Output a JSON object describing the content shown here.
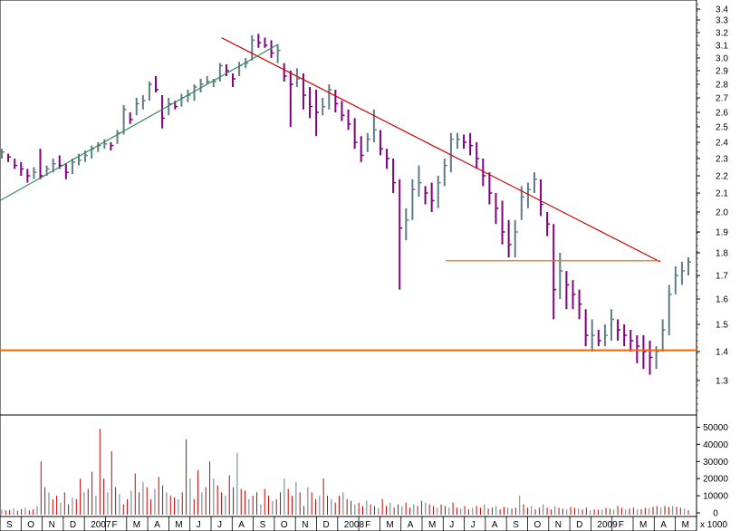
{
  "chart_data": [
    {
      "type": "ohlc",
      "panel": "price",
      "ylim": [
        1.2,
        3.45
      ],
      "y_ticks": [
        "3.4",
        "3.3",
        "3.2",
        "3.1",
        "3.0",
        "2.9",
        "2.8",
        "2.7",
        "2.6",
        "2.5",
        "2.4",
        "2.3",
        "2.2",
        "2.1",
        "2.0",
        "1.9",
        "1.8",
        "1.7",
        "1.6",
        "1.5",
        "1.4",
        "1.3"
      ],
      "series": [
        {
          "style": "ohlc-bars",
          "up_color": "#607d86",
          "down_color": "#800080",
          "points": [
            [
              2.36,
              2.3,
              2.34
            ],
            [
              2.33,
              2.28,
              2.31
            ],
            [
              2.3,
              2.24,
              2.26
            ],
            [
              2.28,
              2.2,
              2.24
            ],
            [
              2.24,
              2.16,
              2.2
            ],
            [
              2.25,
              2.18,
              2.22
            ],
            [
              2.36,
              2.18,
              2.2
            ],
            [
              2.26,
              2.2,
              2.24
            ],
            [
              2.3,
              2.22,
              2.27
            ],
            [
              2.32,
              2.24,
              2.26
            ],
            [
              2.27,
              2.18,
              2.22
            ],
            [
              2.3,
              2.21,
              2.28
            ],
            [
              2.33,
              2.26,
              2.29
            ],
            [
              2.35,
              2.28,
              2.32
            ],
            [
              2.38,
              2.3,
              2.36
            ],
            [
              2.4,
              2.34,
              2.38
            ],
            [
              2.42,
              2.36,
              2.39
            ],
            [
              2.4,
              2.35,
              2.38
            ],
            [
              2.48,
              2.39,
              2.46
            ],
            [
              2.65,
              2.45,
              2.62
            ],
            [
              2.6,
              2.52,
              2.55
            ],
            [
              2.7,
              2.58,
              2.66
            ],
            [
              2.72,
              2.62,
              2.68
            ],
            [
              2.82,
              2.68,
              2.8
            ],
            [
              2.86,
              2.74,
              2.76
            ],
            [
              2.72,
              2.49,
              2.56
            ],
            [
              2.7,
              2.58,
              2.66
            ],
            [
              2.68,
              2.62,
              2.64
            ],
            [
              2.73,
              2.64,
              2.7
            ],
            [
              2.76,
              2.67,
              2.72
            ],
            [
              2.8,
              2.68,
              2.78
            ],
            [
              2.84,
              2.74,
              2.8
            ],
            [
              2.86,
              2.8,
              2.82
            ],
            [
              2.84,
              2.78,
              2.82
            ],
            [
              2.96,
              2.82,
              2.94
            ],
            [
              2.95,
              2.86,
              2.9
            ],
            [
              2.88,
              2.78,
              2.84
            ],
            [
              2.97,
              2.86,
              2.94
            ],
            [
              3.0,
              2.92,
              2.96
            ],
            [
              3.18,
              2.98,
              3.14
            ],
            [
              3.19,
              3.08,
              3.12
            ],
            [
              3.16,
              3.08,
              3.1
            ],
            [
              3.14,
              3.0,
              3.04
            ],
            [
              3.1,
              2.96,
              3.06
            ],
            [
              2.96,
              2.82,
              2.86
            ],
            [
              2.9,
              2.5,
              2.8
            ],
            [
              2.92,
              2.78,
              2.84
            ],
            [
              2.88,
              2.62,
              2.72
            ],
            [
              2.78,
              2.56,
              2.64
            ],
            [
              2.76,
              2.44,
              2.6
            ],
            [
              2.7,
              2.58,
              2.64
            ],
            [
              2.8,
              2.62,
              2.76
            ],
            [
              2.76,
              2.6,
              2.66
            ],
            [
              2.68,
              2.54,
              2.58
            ],
            [
              2.62,
              2.48,
              2.52
            ],
            [
              2.56,
              2.36,
              2.4
            ],
            [
              2.44,
              2.28,
              2.32
            ],
            [
              2.46,
              2.34,
              2.42
            ],
            [
              2.62,
              2.4,
              2.48
            ],
            [
              2.48,
              2.32,
              2.36
            ],
            [
              2.36,
              2.24,
              2.3
            ],
            [
              2.3,
              2.1,
              2.16
            ],
            [
              2.18,
              1.64,
              1.92
            ],
            [
              2.02,
              1.86,
              1.96
            ],
            [
              2.18,
              1.96,
              2.12
            ],
            [
              2.26,
              2.08,
              2.16
            ],
            [
              2.14,
              2.04,
              2.1
            ],
            [
              2.16,
              2.0,
              2.06
            ],
            [
              2.2,
              2.02,
              2.16
            ],
            [
              2.3,
              2.14,
              2.26
            ],
            [
              2.46,
              2.22,
              2.42
            ],
            [
              2.46,
              2.36,
              2.42
            ],
            [
              2.45,
              2.36,
              2.4
            ],
            [
              2.46,
              2.32,
              2.38
            ],
            [
              2.4,
              2.24,
              2.3
            ],
            [
              2.3,
              2.14,
              2.2
            ],
            [
              2.22,
              2.04,
              2.1
            ],
            [
              2.1,
              1.94,
              2.02
            ],
            [
              2.06,
              1.84,
              1.9
            ],
            [
              1.96,
              1.78,
              1.84
            ],
            [
              1.96,
              1.78,
              1.9
            ],
            [
              2.14,
              1.96,
              2.08
            ],
            [
              2.16,
              2.02,
              2.12
            ],
            [
              2.22,
              2.1,
              2.18
            ],
            [
              2.18,
              1.98,
              2.04
            ],
            [
              2.0,
              1.88,
              1.94
            ],
            [
              1.94,
              1.52,
              1.64
            ],
            [
              1.8,
              1.6,
              1.72
            ],
            [
              1.72,
              1.56,
              1.66
            ],
            [
              1.68,
              1.56,
              1.62
            ],
            [
              1.64,
              1.52,
              1.58
            ],
            [
              1.56,
              1.42,
              1.46
            ],
            [
              1.52,
              1.4,
              1.46
            ],
            [
              1.48,
              1.42,
              1.44
            ],
            [
              1.5,
              1.42,
              1.46
            ],
            [
              1.56,
              1.44,
              1.52
            ],
            [
              1.52,
              1.44,
              1.48
            ],
            [
              1.5,
              1.42,
              1.46
            ],
            [
              1.48,
              1.4,
              1.44
            ],
            [
              1.46,
              1.36,
              1.42
            ],
            [
              1.46,
              1.34,
              1.4
            ],
            [
              1.44,
              1.32,
              1.38
            ],
            [
              1.42,
              1.34,
              1.4
            ],
            [
              1.52,
              1.4,
              1.48
            ],
            [
              1.66,
              1.46,
              1.62
            ],
            [
              1.74,
              1.62,
              1.7
            ],
            [
              1.76,
              1.66,
              1.72
            ],
            [
              1.78,
              1.7,
              1.76
            ]
          ]
        },
        {
          "style": "line",
          "color": "#cc0000",
          "x": [
            0.318,
            0.948
          ],
          "y": [
            3.16,
            1.76
          ]
        },
        {
          "style": "line",
          "color": "#2e8b57",
          "x": [
            0.0,
            0.4
          ],
          "y": [
            2.06,
            3.11
          ]
        },
        {
          "style": "line",
          "color": "#ff6600",
          "x": [
            0.64,
            0.948
          ],
          "y": [
            1.765,
            1.765
          ]
        },
        {
          "style": "line",
          "color": "#ff6600",
          "x": [
            0.0,
            1.0
          ],
          "y": [
            1.405,
            1.405
          ]
        }
      ]
    },
    {
      "type": "bar",
      "panel": "volume",
      "ylim": [
        0,
        55000
      ],
      "y_ticks": [
        "50000",
        "40000",
        "30000",
        "20000",
        "10000",
        "0"
      ],
      "y_unit": "x 1000",
      "values": [
        2000,
        1500,
        1800,
        2500,
        1200,
        2200,
        3000,
        1500,
        2000,
        4000,
        30000,
        15000,
        12000,
        8000,
        10000,
        6000,
        12000,
        5000,
        9000,
        8000,
        20000,
        12000,
        14000,
        24000,
        10000,
        49000,
        20000,
        12000,
        36000,
        15000,
        11000,
        5000,
        8000,
        13000,
        23000,
        12000,
        18000,
        15000,
        8000,
        14000,
        21000,
        16000,
        12000,
        10000,
        9000,
        8000,
        12000,
        43000,
        20000,
        8000,
        25000,
        12000,
        15000,
        30000,
        20000,
        16000,
        12000,
        10000,
        22000,
        15000,
        35000,
        14000,
        13000,
        8000,
        10000,
        12000,
        5000,
        14000,
        10000,
        7000,
        8000,
        12000,
        20000,
        14000,
        10000,
        18000,
        12000,
        4000,
        15000,
        12000,
        8000,
        10000,
        20000,
        10000,
        8000,
        6000,
        10000,
        12000,
        8000,
        7000,
        5000,
        6000,
        4000,
        7000,
        5000,
        4000,
        3000,
        8000,
        4000,
        6000,
        3000,
        5000,
        4000,
        6000,
        3000,
        5000,
        4000,
        7000,
        6000,
        5000,
        4000,
        3000,
        5000,
        4000,
        3000,
        6000,
        3000,
        2500,
        4000,
        2000,
        3000,
        4000,
        3000,
        5000,
        2500,
        3000,
        4000,
        2000,
        3500,
        3000,
        2500,
        3000,
        10000,
        5000,
        3000,
        4000,
        2000,
        3000,
        5000,
        3000,
        2000,
        4000,
        3000,
        2500,
        2000,
        3500,
        3000,
        2500,
        2000,
        3000,
        1500,
        2000,
        1800,
        2000,
        3000,
        2500,
        2000,
        4000,
        3000,
        2000,
        2500,
        3000,
        2000,
        2200,
        3000,
        2800,
        3500,
        4000,
        3000,
        4000,
        3500,
        4000,
        3500,
        3000,
        2500,
        1500
      ],
      "colors_by_bar": "mixed",
      "up_color": "#607d86",
      "down_color": "#cc0000"
    }
  ],
  "x_axis": {
    "labels": [
      "S",
      "O",
      "N",
      "D",
      "2007",
      "F",
      "M",
      "A",
      "M",
      "J",
      "J",
      "A",
      "S",
      "O",
      "N",
      "D",
      "2008",
      "F",
      "M",
      "A",
      "M",
      "J",
      "J",
      "A",
      "S",
      "O",
      "N",
      "D",
      "2009",
      "F",
      "M",
      "A",
      "M"
    ],
    "label_x_frac": [
      0.004,
      0.045,
      0.075,
      0.104,
      0.141,
      0.182,
      0.216,
      0.247,
      0.282,
      0.313,
      0.348,
      0.381,
      0.416,
      0.45,
      0.483,
      0.513,
      0.552,
      0.586,
      0.623,
      0.656,
      0.69,
      0.721,
      0.756,
      0.79,
      0.821,
      0.855,
      0.889,
      0.922,
      0.966,
      1.0,
      0.939,
      0.971,
      0.995
    ]
  }
}
